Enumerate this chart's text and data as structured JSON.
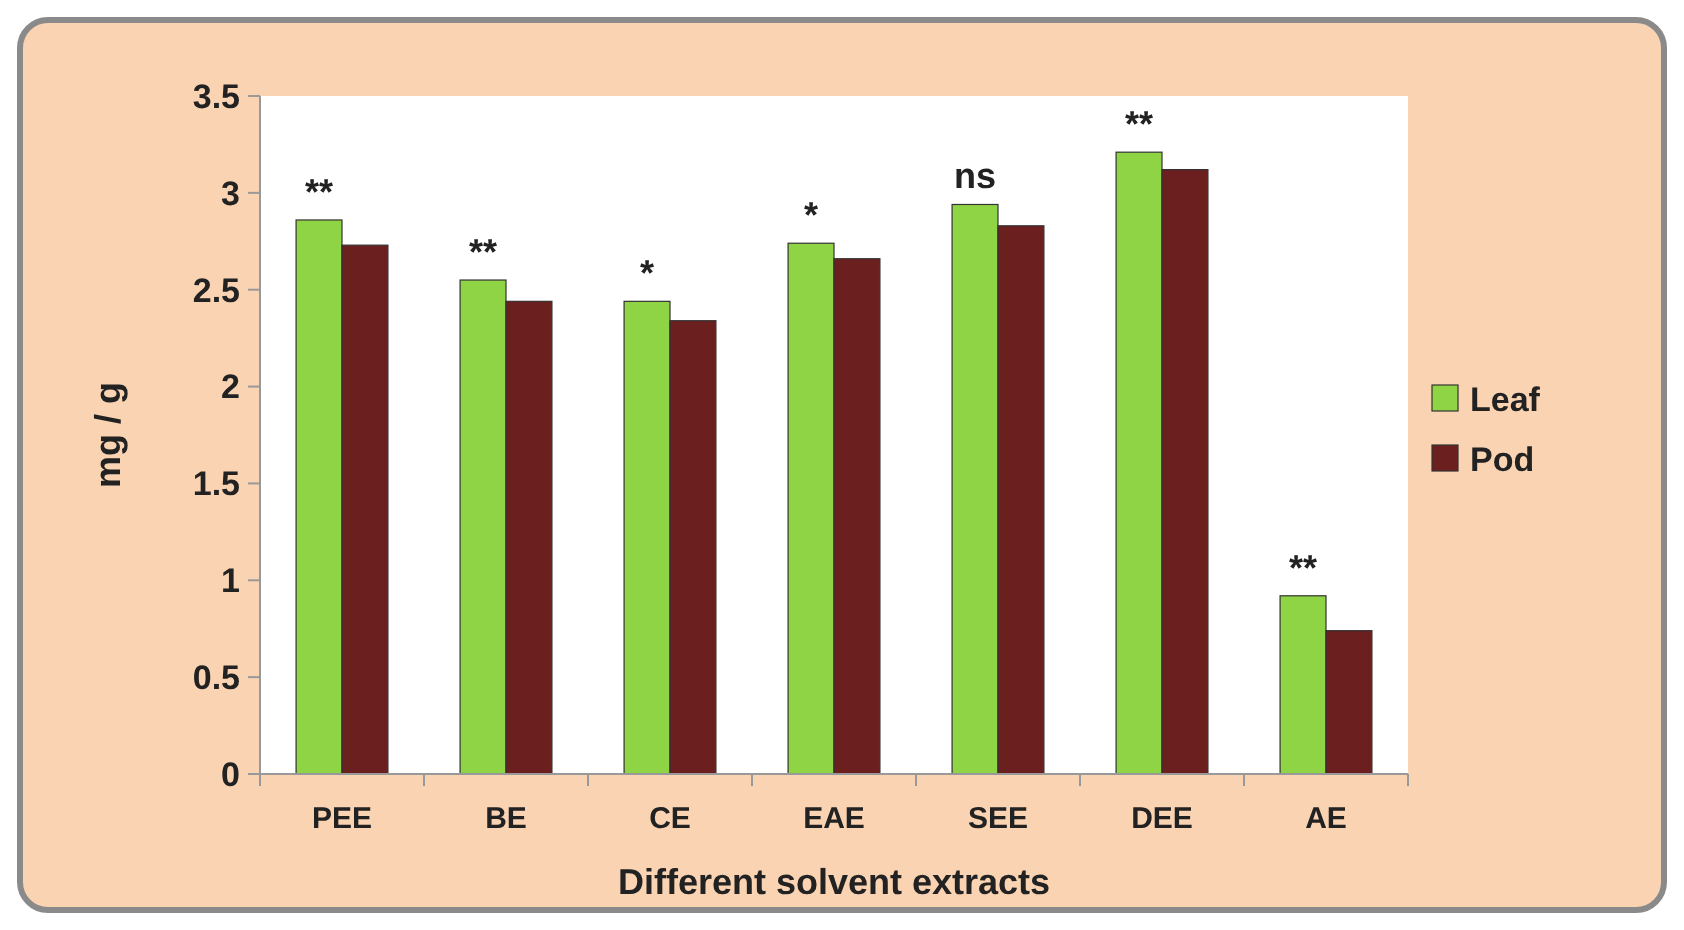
{
  "chart_data": {
    "type": "bar",
    "xlabel": "Different solvent extracts",
    "ylabel": "mg / g",
    "categories": [
      "PEE",
      "BE",
      "CE",
      "EAE",
      "SEE",
      "DEE",
      "AE"
    ],
    "series": [
      {
        "name": "Leaf",
        "color": "#8fd444",
        "values": [
          2.86,
          2.55,
          2.44,
          2.74,
          2.94,
          3.21,
          0.92
        ]
      },
      {
        "name": "Pod",
        "color": "#6b1f1f",
        "values": [
          2.73,
          2.44,
          2.34,
          2.66,
          2.83,
          3.12,
          0.74
        ]
      }
    ],
    "ylim": [
      0,
      3.5
    ],
    "yticks": [
      0,
      0.5,
      1,
      1.5,
      2,
      2.5,
      3,
      3.5
    ],
    "grid": false,
    "legend": "right",
    "annotations": [
      {
        "text": "**",
        "x": "PEE",
        "y": 2.86
      },
      {
        "text": "**",
        "x": "BE",
        "y": 2.55
      },
      {
        "text": "*",
        "x": "CE",
        "y": 2.44
      },
      {
        "text": "*",
        "x": "EAE",
        "y": 2.74
      },
      {
        "text": "ns",
        "x": "SEE",
        "y": 2.94
      },
      {
        "text": "**",
        "x": "DEE",
        "y": 3.21
      },
      {
        "text": "**",
        "x": "AE",
        "y": 0.92
      }
    ]
  }
}
